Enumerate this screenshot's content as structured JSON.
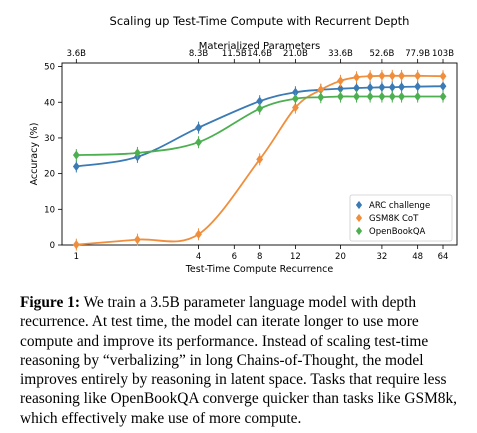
{
  "chart_data": {
    "type": "line",
    "title": "Scaling up Test-Time Compute with Recurrent Depth",
    "xlabel": "Test-Time Compute Recurrence",
    "ylabel": "Accuracy (%)",
    "x_scale": "log",
    "xlim": [
      0.85,
      75
    ],
    "ylim": [
      0,
      51
    ],
    "xticks": [
      1,
      4,
      6,
      8,
      12,
      20,
      32,
      48,
      64
    ],
    "yticks": [
      0,
      10,
      20,
      30,
      40,
      50
    ],
    "top_axis": {
      "label": "Materialized Parameters",
      "ticks": [
        {
          "x": 1,
          "label": "3.6B"
        },
        {
          "x": 4,
          "label": "8.3B"
        },
        {
          "x": 6,
          "label": "11.5B"
        },
        {
          "x": 8,
          "label": "14.6B"
        },
        {
          "x": 12,
          "label": "21.0B"
        },
        {
          "x": 20,
          "label": "33.6B"
        },
        {
          "x": 32,
          "label": "52.6B"
        },
        {
          "x": 48,
          "label": "77.9B"
        },
        {
          "x": 64,
          "label": "103B"
        }
      ]
    },
    "grid": false,
    "legend_position": "lower-right",
    "series": [
      {
        "name": "ARC challenge",
        "color": "#3a7ab5",
        "marker": "diamond",
        "x": [
          1,
          2,
          4,
          8,
          12,
          16,
          20,
          24,
          28,
          32,
          36,
          40,
          48,
          64
        ],
        "y": [
          22.0,
          24.7,
          32.9,
          40.3,
          42.8,
          43.5,
          43.8,
          44.0,
          44.1,
          44.2,
          44.2,
          44.3,
          44.4,
          44.5
        ]
      },
      {
        "name": "GSM8K CoT",
        "color": "#f08e3c",
        "marker": "diamond",
        "x": [
          1,
          2,
          4,
          8,
          12,
          16,
          20,
          24,
          28,
          32,
          36,
          40,
          48,
          64
        ],
        "y": [
          0.1,
          1.5,
          3.0,
          24.0,
          38.5,
          43.5,
          46.0,
          47.0,
          47.3,
          47.4,
          47.4,
          47.4,
          47.4,
          47.3
        ]
      },
      {
        "name": "OpenBookQA",
        "color": "#4caf50",
        "marker": "diamond",
        "x": [
          1,
          2,
          4,
          8,
          12,
          16,
          20,
          24,
          28,
          32,
          36,
          40,
          48,
          64
        ],
        "y": [
          25.2,
          25.8,
          28.8,
          38.2,
          41.0,
          41.4,
          41.6,
          41.6,
          41.6,
          41.6,
          41.6,
          41.6,
          41.6,
          41.6
        ]
      }
    ]
  },
  "caption": {
    "label": "Figure 1:",
    "text": "We train a 3.5B parameter language model with depth recurrence. At test time, the model can iterate longer to use more compute and improve its performance. Instead of scaling test-time reasoning by “verbalizing” in long Chains-of-Thought, the model improves entirely by reasoning in latent space. Tasks that require less reasoning like OpenBookQA converge quicker than tasks like GSM8k, which effectively make use of more compute."
  }
}
